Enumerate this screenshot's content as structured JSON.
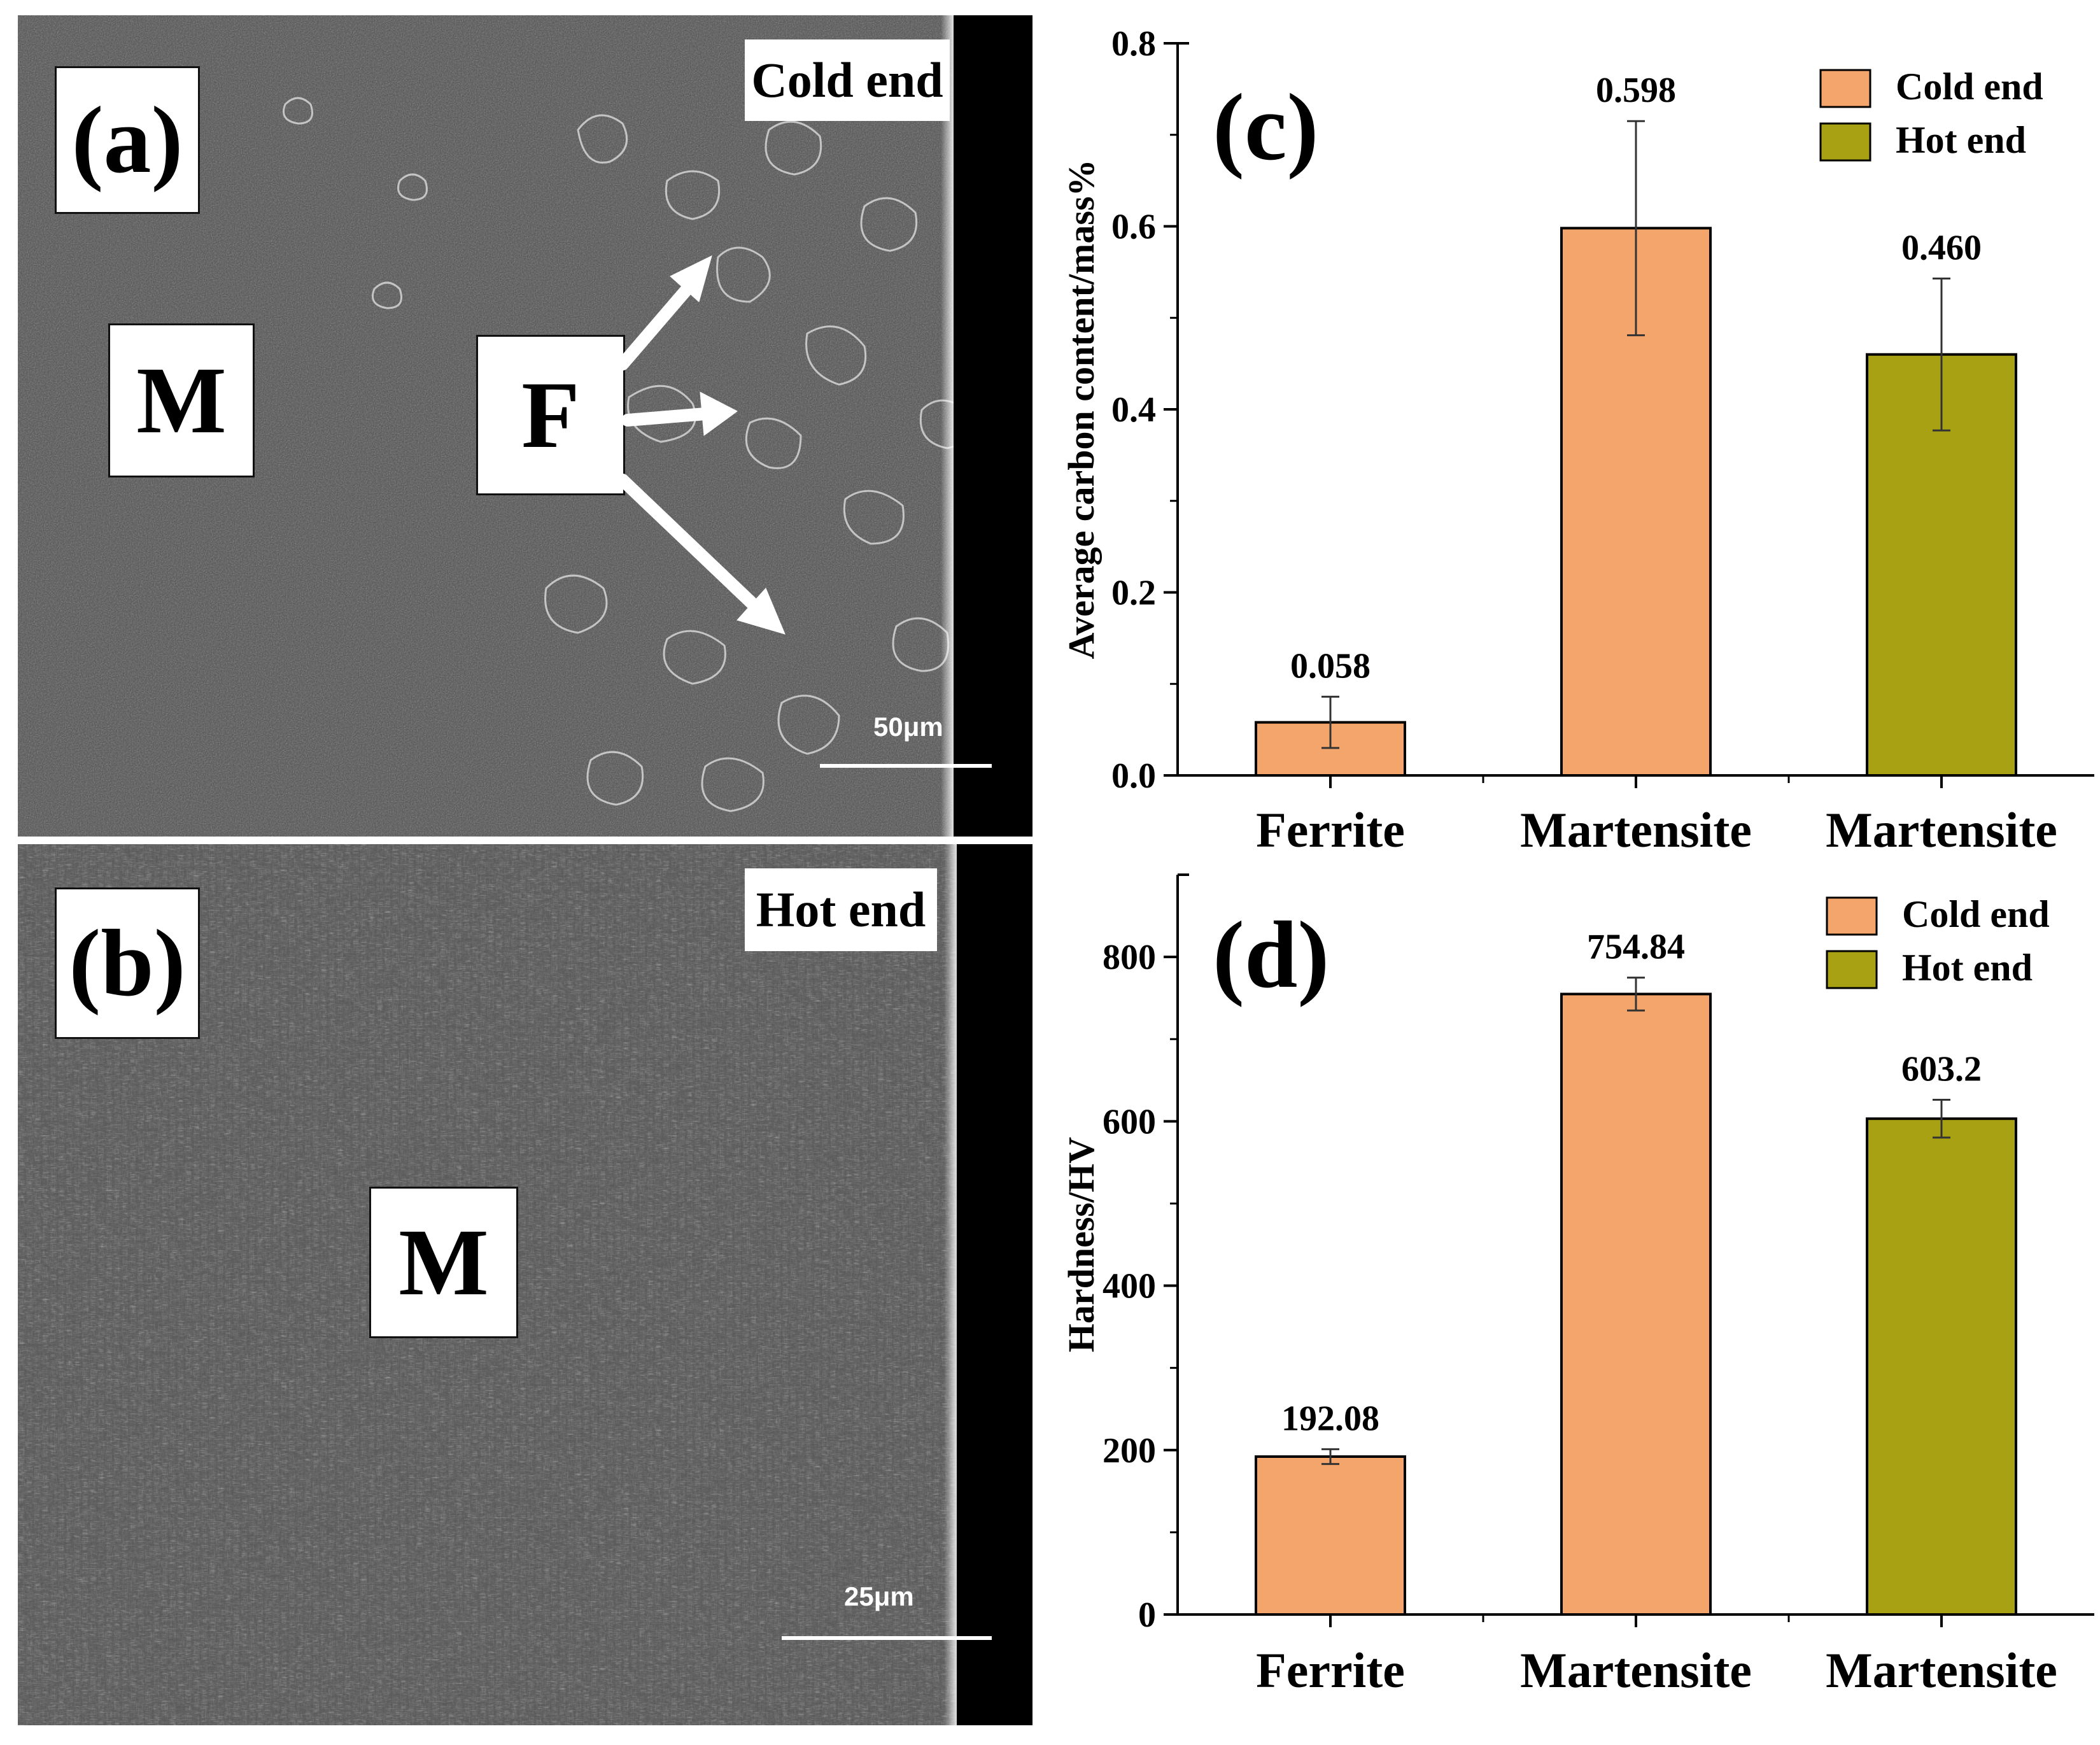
{
  "sem_a": {
    "panel_label": "(a)",
    "corner_tag": "Cold end",
    "phase_labels": [
      "M",
      "F"
    ],
    "scale_text": "50μm",
    "background_color": "#4e4e4e",
    "edge_color": "#000000"
  },
  "sem_b": {
    "panel_label": "(b)",
    "corner_tag": "Hot end",
    "phase_labels": [
      "M"
    ],
    "scale_text": "25μm",
    "background_color": "#555555",
    "edge_color": "#000000"
  },
  "chart_data": [
    {
      "type": "bar",
      "panel_label": "(c)",
      "categories": [
        "Ferrite",
        "Martensite",
        "Martensite"
      ],
      "values": [
        0.058,
        0.598,
        0.46
      ],
      "value_labels": [
        "0.058",
        "0.598",
        "0.460"
      ],
      "errors": [
        0.028,
        0.117,
        0.083
      ],
      "bar_series": [
        "Cold end",
        "Cold end",
        "Hot end"
      ],
      "ylabel": "Average carbon content/mass%",
      "xlabel": "",
      "ylim": [
        0,
        0.8
      ],
      "yticks": [
        0.0,
        0.2,
        0.4,
        0.6,
        0.8
      ],
      "ytick_labels": [
        "0.0",
        "0.2",
        "0.4",
        "0.6",
        "0.8"
      ],
      "legend": [
        {
          "name": "Cold end",
          "color": "#f4a56b"
        },
        {
          "name": "Hot end",
          "color": "#a9a114"
        }
      ],
      "legend_position": "top-right",
      "grid": false
    },
    {
      "type": "bar",
      "panel_label": "(d)",
      "categories": [
        "Ferrite",
        "Martensite",
        "Martensite"
      ],
      "values": [
        192.08,
        754.84,
        603.2
      ],
      "value_labels": [
        "192.08",
        "754.84",
        "603.2"
      ],
      "errors": [
        9,
        20,
        23
      ],
      "bar_series": [
        "Cold end",
        "Cold end",
        "Hot end"
      ],
      "ylabel": "Hardness/HV",
      "xlabel": "",
      "ylim": [
        0,
        900
      ],
      "yticks": [
        0,
        200,
        400,
        600,
        800
      ],
      "ytick_labels": [
        "0",
        "200",
        "400",
        "600",
        "800"
      ],
      "legend": [
        {
          "name": "Cold end",
          "color": "#f4a56b"
        },
        {
          "name": "Hot end",
          "color": "#a9a114"
        }
      ],
      "legend_position": "top-right",
      "grid": false
    }
  ]
}
